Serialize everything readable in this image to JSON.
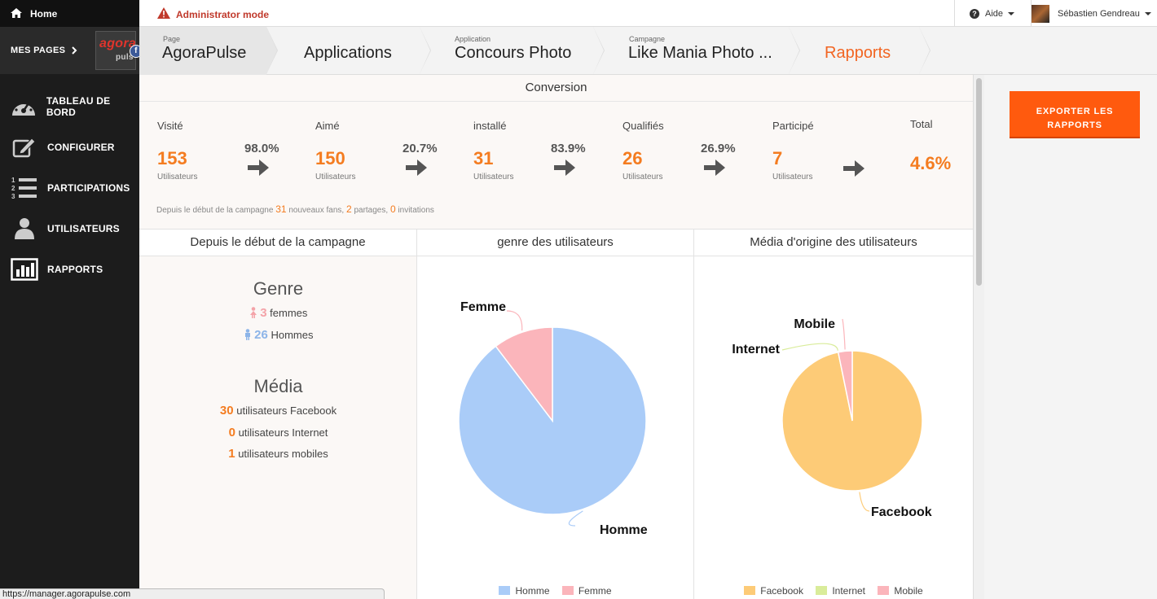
{
  "sidebar": {
    "home_label": "Home",
    "mes_pages_label": "MES PAGES",
    "logo": {
      "agora": "agora",
      "pulse": "puls",
      "fb": "f"
    },
    "items": [
      {
        "label": "TABLEAU DE BORD",
        "icon": "dashboard-icon"
      },
      {
        "label": "CONFIGURER",
        "icon": "edit-icon"
      },
      {
        "label": "PARTICIPATIONS",
        "icon": "numbered-list-icon"
      },
      {
        "label": "UTILISATEURS",
        "icon": "user-icon"
      },
      {
        "label": "RAPPORTS",
        "icon": "bar-chart-icon"
      }
    ]
  },
  "topbar": {
    "admin_label": "Administrator mode",
    "aide_label": "Aide",
    "user_name": "Sébastien Gendreau"
  },
  "breadcrumb": [
    {
      "small": "Page",
      "big": "AgoraPulse"
    },
    {
      "small": "",
      "big": "Applications"
    },
    {
      "small": "Application",
      "big": "Concours Photo"
    },
    {
      "small": "Campagne",
      "big": "Like Mania Photo ..."
    },
    {
      "small": "",
      "big": "Rapports"
    }
  ],
  "conversion": {
    "title": "Conversion",
    "stages": [
      {
        "label": "Visité",
        "value": "153",
        "unit": "Utilisateurs"
      },
      {
        "label": "Aimé",
        "value": "150",
        "unit": "Utilisateurs"
      },
      {
        "label": "installé",
        "value": "31",
        "unit": "Utilisateurs"
      },
      {
        "label": "Qualifiés",
        "value": "26",
        "unit": "Utilisateurs"
      },
      {
        "label": "Participé",
        "value": "7",
        "unit": "Utilisateurs"
      }
    ],
    "rates": [
      "98.0%",
      "20.7%",
      "83.9%",
      "26.9%"
    ],
    "total_label": "Total",
    "total_value": "4.6%",
    "since": {
      "prefix": "Depuis le début de la campagne",
      "fans": "31",
      "fans_label": "nouveaux fans",
      "shares": "2",
      "shares_label": "partages",
      "invites": "0",
      "invites_label": "invitations"
    }
  },
  "summary": {
    "title": "Depuis le début de la campagne",
    "genre_title": "Genre",
    "femmes_value": "3",
    "femmes_label": "femmes",
    "hommes_value": "26",
    "hommes_label": "Hommes",
    "media_title": "Média",
    "facebook_value": "30",
    "facebook_label": "utilisateurs Facebook",
    "internet_value": "0",
    "internet_label": "utilisateurs Internet",
    "mobile_value": "1",
    "mobile_label": "utilisateurs mobiles"
  },
  "chart_data": [
    {
      "type": "pie",
      "title": "genre des utilisateurs",
      "categories": [
        "Homme",
        "Femme"
      ],
      "values": [
        26,
        3
      ],
      "colors": [
        "#aaccf8",
        "#fbb5bb"
      ],
      "legend": "bottom"
    },
    {
      "type": "pie",
      "title": "Média d'origine des utilisateurs",
      "categories": [
        "Facebook",
        "Internet",
        "Mobile"
      ],
      "values": [
        30,
        0,
        1
      ],
      "colors": [
        "#fdcb77",
        "#d9ec9a",
        "#fbb5bb"
      ],
      "legend": "bottom"
    }
  ],
  "export_label": "EXPORTER LES RAPPORTS",
  "status_url": "https://manager.agorapulse.com"
}
